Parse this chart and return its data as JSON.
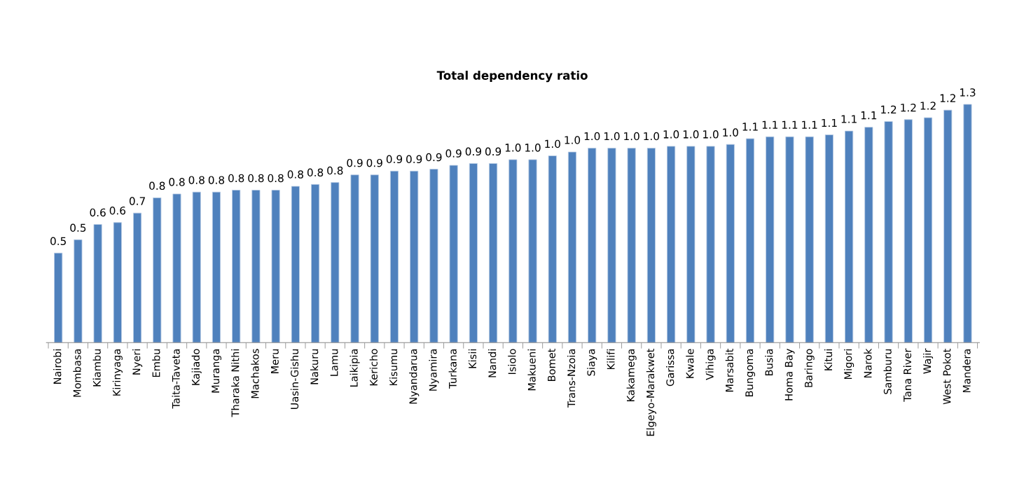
{
  "chart_data": {
    "type": "bar",
    "title": "Total dependency ratio",
    "categories": [
      "Nairobi",
      "Mombasa",
      "Kiambu",
      "Kirinyaga",
      "Nyeri",
      "Embu",
      "Taita-Taveta",
      "Kajiado",
      "Muranga",
      "Tharaka Nithi",
      "Machakos",
      "Meru",
      "Uasin-Gishu",
      "Nakuru",
      "Lamu",
      "Laikipia",
      "Kericho",
      "Kisumu",
      "Nyandarua",
      "Nyamira",
      "Turkana",
      "Kisii",
      "Nandi",
      "Isiolo",
      "Makueni",
      "Bomet",
      "Trans-Nzoia",
      "Siaya",
      "Kilifi",
      "Kakamega",
      "Elgeyo-Marakwet",
      "Garissa",
      "Kwale",
      "Vihiga",
      "Marsabit",
      "Bungoma",
      "Busia",
      "Homa Bay",
      "Baringo",
      "Kitui",
      "Migori",
      "Narok",
      "Samburu",
      "Tana River",
      "Wajir",
      "West Pokot",
      "Mandera"
    ],
    "values": [
      0.47,
      0.54,
      0.62,
      0.63,
      0.68,
      0.76,
      0.78,
      0.79,
      0.79,
      0.8,
      0.8,
      0.8,
      0.82,
      0.83,
      0.84,
      0.88,
      0.88,
      0.9,
      0.9,
      0.91,
      0.93,
      0.94,
      0.94,
      0.96,
      0.96,
      0.98,
      1.0,
      1.02,
      1.02,
      1.02,
      1.02,
      1.03,
      1.03,
      1.03,
      1.04,
      1.07,
      1.08,
      1.08,
      1.08,
      1.09,
      1.11,
      1.13,
      1.16,
      1.17,
      1.18,
      1.22,
      1.25
    ],
    "value_labels": [
      "0.5",
      "0.5",
      "0.6",
      "0.6",
      "0.7",
      "0.8",
      "0.8",
      "0.8",
      "0.8",
      "0.8",
      "0.8",
      "0.8",
      "0.8",
      "0.8",
      "0.8",
      "0.9",
      "0.9",
      "0.9",
      "0.9",
      "0.9",
      "0.9",
      "0.9",
      "0.9",
      "1.0",
      "1.0",
      "1.0",
      "1.0",
      "1.0",
      "1.0",
      "1.0",
      "1.0",
      "1.0",
      "1.0",
      "1.0",
      "1.0",
      "1.1",
      "1.1",
      "1.1",
      "1.1",
      "1.1",
      "1.1",
      "1.1",
      "1.2",
      "1.2",
      "1.2",
      "1.2",
      "1.3"
    ],
    "color": "#4f81bd"
  }
}
